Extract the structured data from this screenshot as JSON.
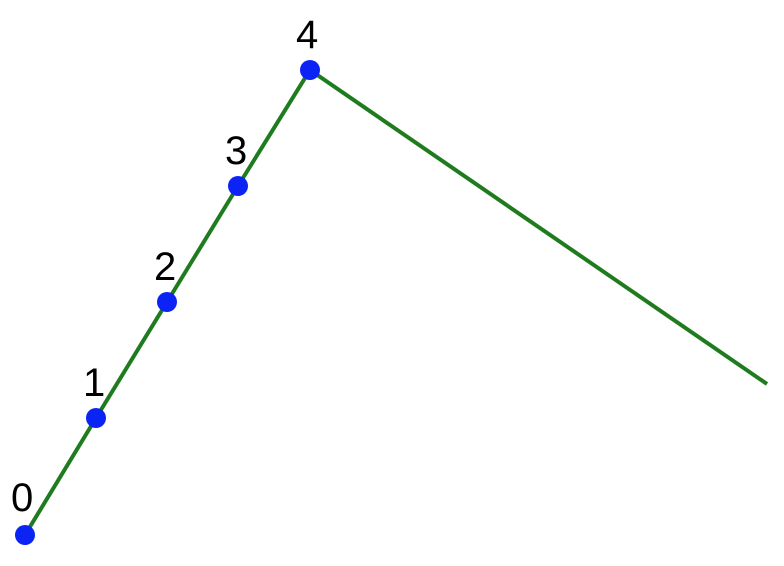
{
  "diagram": {
    "colors": {
      "line": "#1e7b1e",
      "point": "#0b24f5",
      "label": "#000000",
      "background": "#ffffff"
    },
    "points": [
      {
        "label": "0"
      },
      {
        "label": "1"
      },
      {
        "label": "2"
      },
      {
        "label": "3"
      },
      {
        "label": "4"
      }
    ]
  }
}
